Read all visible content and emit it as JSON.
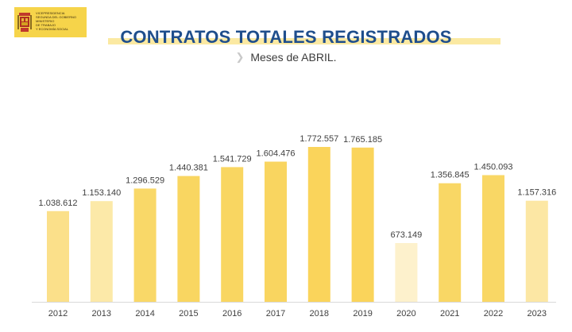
{
  "logo": {
    "lines": [
      "Vicepresidencia",
      "Segunda del Gobierno",
      "Ministerio",
      "de Trabajo",
      "y Economía Social"
    ],
    "color": "#f6d44a"
  },
  "header": {
    "title": "CONTRATOS TOTALES REGISTRADOS",
    "subtitle": "Meses de ABRIL.",
    "chevron_icon": "chevron-right-icon"
  },
  "chart_data": {
    "type": "bar",
    "title": "CONTRATOS TOTALES REGISTRADOS",
    "subtitle": "Meses de ABRIL.",
    "xlabel": "",
    "ylabel": "",
    "ylim": [
      0,
      1900000
    ],
    "grid": false,
    "categories": [
      "2012",
      "2013",
      "2014",
      "2015",
      "2016",
      "2017",
      "2018",
      "2019",
      "2020",
      "2021",
      "2022",
      "2023"
    ],
    "values": [
      1038612,
      1153140,
      1296529,
      1440381,
      1541729,
      1604476,
      1772557,
      1765185,
      673149,
      1356845,
      1450093,
      1157316
    ],
    "value_labels": [
      "1.038.612",
      "1.153.140",
      "1.296.529",
      "1.440.381",
      "1.541.729",
      "1.604.476",
      "1.772.557",
      "1.765.185",
      "673.149",
      "1.356.845",
      "1.450.093",
      "1.157.316"
    ],
    "colors": [
      "#fbe08a",
      "#fce9a8",
      "#f9d868",
      "#f9d661",
      "#f9d661",
      "#f9d560",
      "#fad45b",
      "#fad45b",
      "#fdf1cc",
      "#f9d765",
      "#f9d765",
      "#fce7a4"
    ]
  }
}
